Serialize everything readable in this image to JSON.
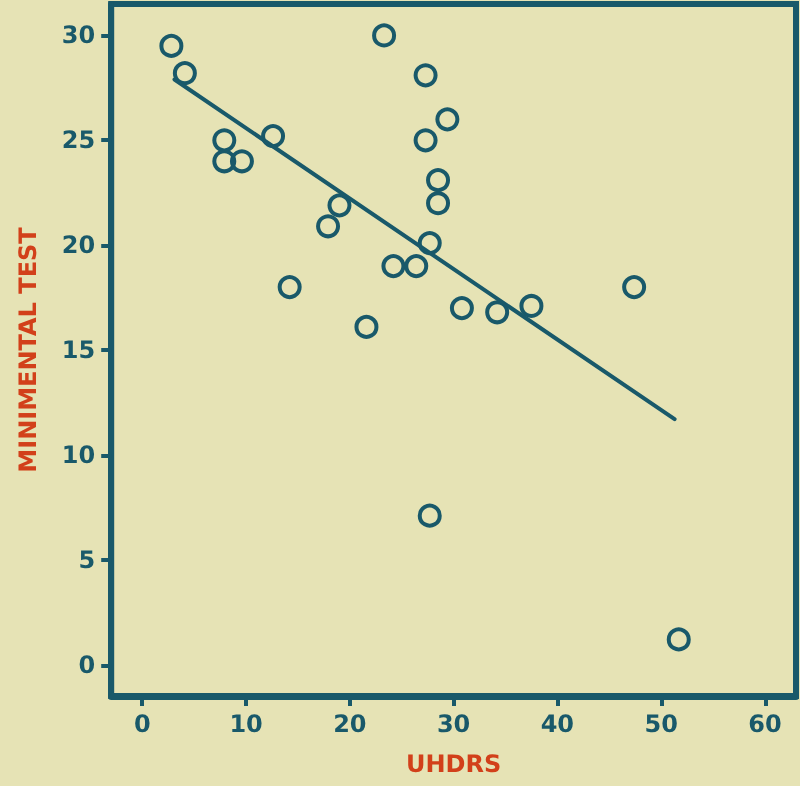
{
  "chart_data": {
    "type": "scatter",
    "xlabel": "UHDRS",
    "ylabel": "MINIMENTAL TEST",
    "xlim": [
      -3,
      63
    ],
    "ylim": [
      -1.5,
      31.5
    ],
    "xticks": [
      0,
      10,
      20,
      30,
      40,
      50,
      60
    ],
    "yticks": [
      0,
      5,
      10,
      15,
      20,
      25,
      30
    ],
    "grid": false,
    "marker": "circle",
    "series": [
      {
        "color": "#19596a",
        "x": [
          2.8,
          4.1,
          7.9,
          7.9,
          9.6,
          12.6,
          14.2,
          17.9,
          19.0,
          21.6,
          24.2,
          23.3,
          27.3,
          27.3,
          29.4,
          28.5,
          28.5,
          27.7,
          26.4,
          30.8,
          34.2,
          37.5,
          47.4,
          27.7,
          51.7
        ],
        "values": [
          29.5,
          28.2,
          25.0,
          24.0,
          24.0,
          25.2,
          18.0,
          20.9,
          21.9,
          16.1,
          19.0,
          30.0,
          28.1,
          25.0,
          26.0,
          23.1,
          22.0,
          20.1,
          19.0,
          17.0,
          16.8,
          17.1,
          18.0,
          7.1,
          1.2
        ]
      },
      {
        "type": "line",
        "color": "#19596a",
        "marker": "none",
        "line_style": "solid",
        "x": [
          3.1,
          51.3
        ],
        "values": [
          27.9,
          11.7
        ]
      }
    ]
  }
}
